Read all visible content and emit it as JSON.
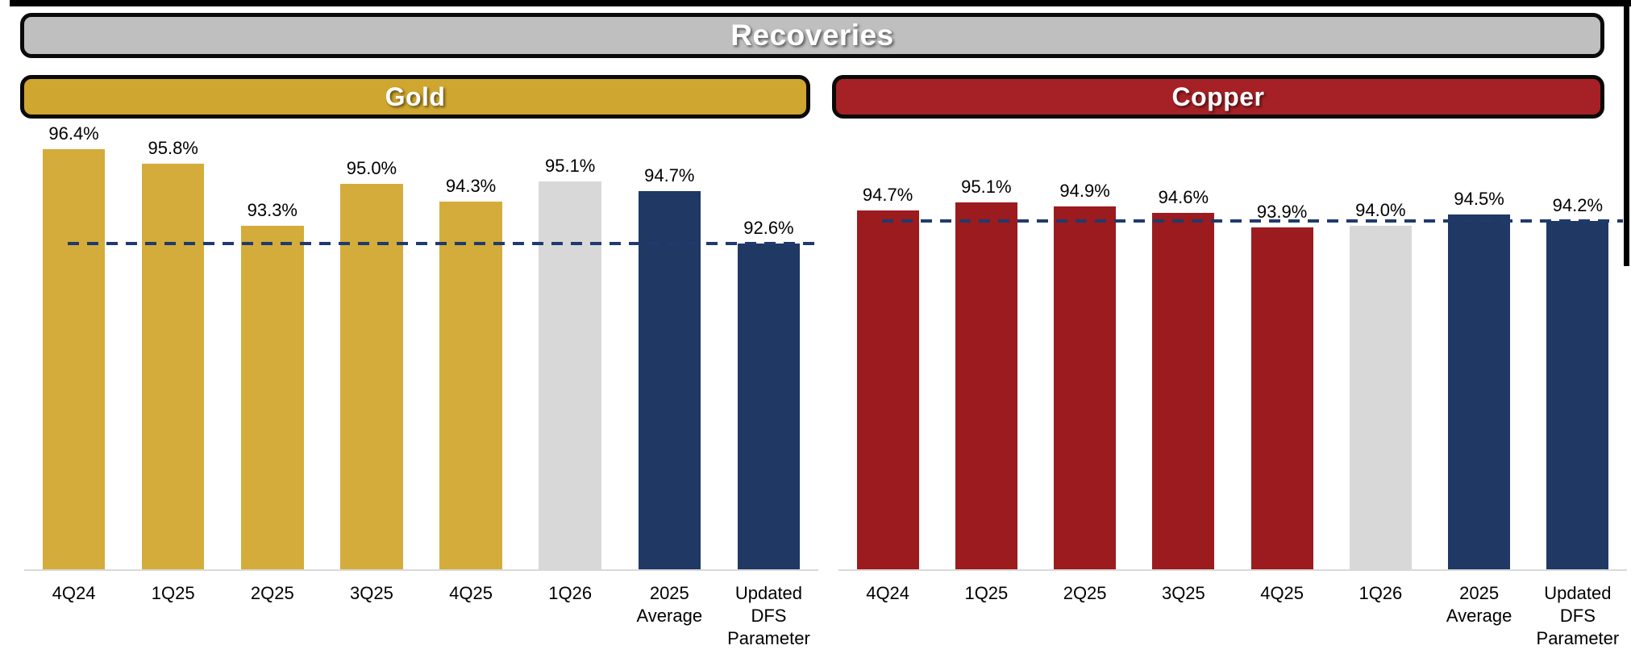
{
  "page": {
    "title": "Recoveries"
  },
  "colors": {
    "gold": "#D3AC3B",
    "copper": "#9C1B1F",
    "gray": "#D8D8D8",
    "navy": "#1F3864",
    "header_gray": "#BFBFBF",
    "header_gold": "#CFA62F",
    "header_copper": "#A62126",
    "reference_line": "#1F3B6D",
    "axis_line": "#D9D9D9"
  },
  "chart_data": [
    {
      "id": "gold",
      "type": "bar",
      "title": "Gold",
      "categories": [
        "4Q24",
        "1Q25",
        "2Q25",
        "3Q25",
        "4Q25",
        "1Q26",
        "2025\nAverage",
        "Updated\nDFS\nParameter"
      ],
      "values": [
        96.4,
        95.8,
        93.3,
        95.0,
        94.3,
        95.1,
        94.7,
        92.6
      ],
      "value_labels": [
        "96.4%",
        "95.8%",
        "93.3%",
        "95.0%",
        "94.3%",
        "95.1%",
        "94.7%",
        "92.6%"
      ],
      "bar_colors": [
        "gold",
        "gold",
        "gold",
        "gold",
        "gold",
        "gray",
        "navy",
        "navy"
      ],
      "reference_line": 92.6,
      "ylim": [
        79.5,
        98.5
      ],
      "unit": "%",
      "grid": false,
      "legend": false
    },
    {
      "id": "copper",
      "type": "bar",
      "title": "Copper",
      "categories": [
        "4Q24",
        "1Q25",
        "2Q25",
        "3Q25",
        "4Q25",
        "1Q26",
        "2025\nAverage",
        "Updated\nDFS\nParameter"
      ],
      "values": [
        94.7,
        95.1,
        94.9,
        94.6,
        93.9,
        94.0,
        94.5,
        94.2
      ],
      "value_labels": [
        "94.7%",
        "95.1%",
        "94.9%",
        "94.6%",
        "93.9%",
        "94.0%",
        "94.5%",
        "94.2%"
      ],
      "bar_colors": [
        "copper",
        "copper",
        "copper",
        "copper",
        "copper",
        "gray",
        "navy",
        "navy"
      ],
      "reference_line": 94.2,
      "ylim": [
        78.0,
        100.0
      ],
      "unit": "%",
      "grid": false,
      "legend": false
    }
  ]
}
